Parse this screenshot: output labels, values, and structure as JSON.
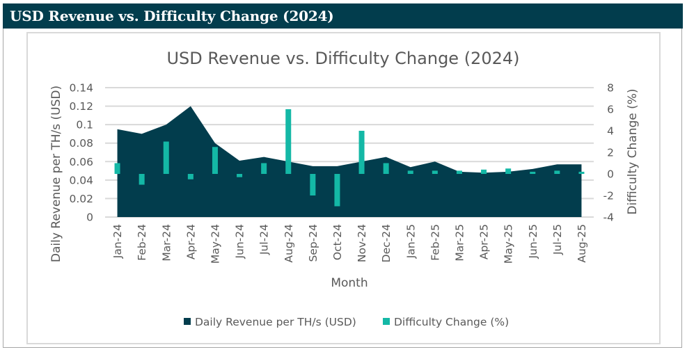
{
  "header": {
    "title": "USD Revenue vs. Difficulty Change (2024)"
  },
  "colors": {
    "header_bg": "#023d4d",
    "area": "#023d4d",
    "bars": "#14b8a6",
    "gridline": "#d9d9d9",
    "text": "#595959"
  },
  "chart_data": {
    "type": "area+bar",
    "title": "USD Revenue vs. Difficulty Change (2024)",
    "xlabel": "Month",
    "ylabel": "Daily Revenue per TH/s (USD)",
    "y2label": "Difficulty Change (%)",
    "categories": [
      "Jan-24",
      "Feb-24",
      "Mar-24",
      "Apr-24",
      "May-24",
      "Jun-24",
      "Jul-24",
      "Aug-24",
      "Sep-24",
      "Oct-24",
      "Nov-24",
      "Dec-24",
      "Jan-25",
      "Feb-25",
      "Mar-25",
      "Apr-25",
      "May-25",
      "Jun-25",
      "Jul-25",
      "Aug-25"
    ],
    "ylim": [
      0,
      0.14
    ],
    "y_ticks": [
      "0",
      "0.02",
      "0.04",
      "0.06",
      "0.08",
      "0.1",
      "0.12",
      "0.14"
    ],
    "y_tick_values": [
      0,
      0.02,
      0.04,
      0.06,
      0.08,
      0.1,
      0.12,
      0.14
    ],
    "y2lim": [
      -4,
      8
    ],
    "y2_ticks": [
      "-4",
      "-2",
      "0",
      "2",
      "4",
      "6",
      "8"
    ],
    "y2_tick_values": [
      -4,
      -2,
      0,
      2,
      4,
      6,
      8
    ],
    "grid": true,
    "legend_position": "bottom",
    "series": [
      {
        "name": "Daily Revenue per TH/s (USD)",
        "type": "area",
        "axis": "left",
        "values": [
          0.095,
          0.09,
          0.1,
          0.12,
          0.08,
          0.061,
          0.065,
          0.06,
          0.055,
          0.055,
          0.06,
          0.065,
          0.054,
          0.06,
          0.049,
          0.048,
          0.049,
          0.052,
          0.057,
          0.057
        ]
      },
      {
        "name": "Difficulty Change (%)",
        "type": "bar",
        "axis": "right",
        "values": [
          1.0,
          -1.0,
          3.0,
          -0.5,
          2.5,
          -0.3,
          1.0,
          6.0,
          -2.0,
          -3.0,
          4.0,
          1.0,
          0.3,
          0.3,
          0.3,
          0.4,
          0.5,
          0.2,
          0.3,
          0.2
        ]
      }
    ]
  }
}
